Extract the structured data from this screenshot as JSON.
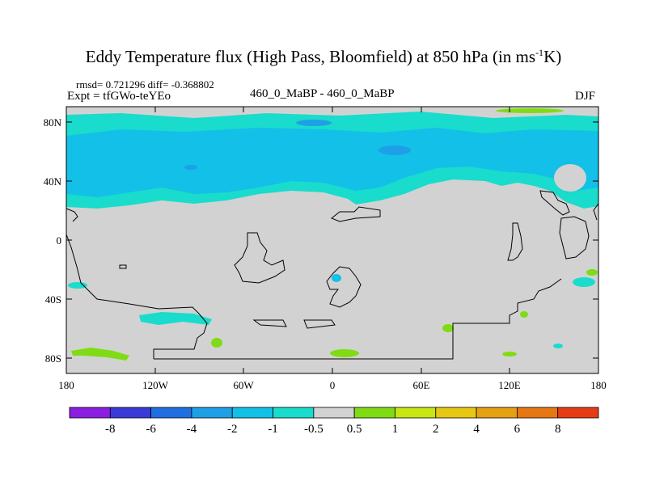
{
  "title": {
    "main": "Eddy Temperature flux (High Pass, Bloomfield) at 850 hPa (in ms",
    "sup": "-1",
    "tail": "K)"
  },
  "stats": "rmsd= 0.721296 diff= -0.368802",
  "expt": "Expt = tfGWo-teYEo",
  "center_label": "460_0_MaBP - 460_0_MaBP",
  "season": "DJF",
  "axes": {
    "lat_ticks": [
      "80N",
      "40N",
      "0",
      "40S",
      "80S"
    ],
    "lon_ticks": [
      "180",
      "120W",
      "60W",
      "0",
      "60E",
      "120E",
      "180"
    ]
  },
  "colorbar": {
    "labels": [
      "-8",
      "-6",
      "-4",
      "-2",
      "-1",
      "-0.5",
      "0.5",
      "1",
      "2",
      "4",
      "6",
      "8"
    ],
    "colors": [
      "#8a1fe0",
      "#3a3ad8",
      "#1f6fe0",
      "#1f9fe6",
      "#12c0e8",
      "#19dccc",
      "#d2d2d2",
      "#7fdc14",
      "#c8e614",
      "#e6c814",
      "#e6a014",
      "#e67814",
      "#e63c14"
    ]
  },
  "map_colors": {
    "neutral": "#d2d2d2",
    "light_blue": "#19dccc",
    "mid_blue": "#12c0e8",
    "blue": "#1f9fe6",
    "green": "#7fdc14"
  }
}
